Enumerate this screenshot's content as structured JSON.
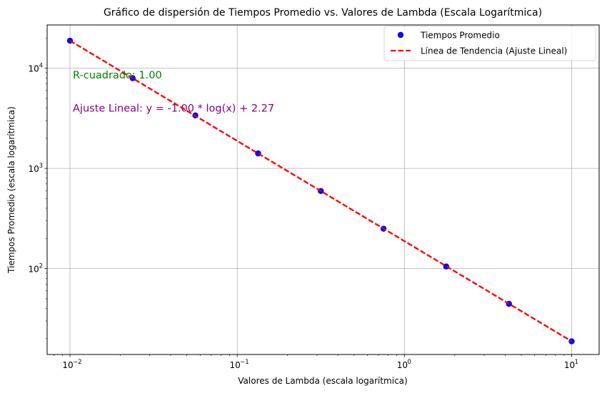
{
  "chart_data": {
    "type": "scatter",
    "title": "Gráfico de dispersión de Tiempos Promedio vs. Valores de Lambda (Escala Logarítmica)",
    "xlabel": "Valores de Lambda (escala logarítmica)",
    "ylabel": "Tiempos Promedio (escala logarítmica)",
    "xscale": "log",
    "yscale": "log",
    "xlim": [
      0.0073,
      14.6
    ],
    "ylim": [
      13.9,
      27000
    ],
    "grid": true,
    "legend_position": "top-right",
    "x_ticks": [
      {
        "value": 0.01,
        "base": "10",
        "exp": "−2"
      },
      {
        "value": 0.1,
        "base": "10",
        "exp": "−1"
      },
      {
        "value": 1,
        "base": "10",
        "exp": "0"
      },
      {
        "value": 10,
        "base": "10",
        "exp": "1"
      }
    ],
    "y_ticks": [
      {
        "value": 100,
        "base": "10",
        "exp": "2"
      },
      {
        "value": 1000,
        "base": "10",
        "exp": "3"
      },
      {
        "value": 10000,
        "base": "10",
        "exp": "4"
      }
    ],
    "series": [
      {
        "name": "Tiempos Promedio",
        "kind": "scatter",
        "color": "#0000ff",
        "x": [
          0.01,
          0.0237,
          0.0562,
          0.1334,
          0.3162,
          0.7499,
          1.778,
          4.217,
          10.0
        ],
        "y": [
          18800,
          7950,
          3380,
          1410,
          595,
          250,
          105,
          44.5,
          18.8
        ]
      },
      {
        "name": "Línea de Tendencia (Ajuste Lineal)",
        "kind": "line",
        "style": "dashed",
        "color": "#ff0000",
        "x": [
          0.01,
          10.0
        ],
        "y": [
          18800,
          18.8
        ]
      }
    ],
    "annotations": [
      {
        "id": "r2",
        "text": "R-cuadrado: 1.00",
        "color": "#008000",
        "anchor_x": 0.01,
        "anchor_y": 8600
      },
      {
        "id": "fit",
        "text": "Ajuste Lineal: y = -1.00 * log(x) + 2.27",
        "color": "#800080",
        "anchor_x": 0.01,
        "anchor_y": 4000
      }
    ]
  }
}
